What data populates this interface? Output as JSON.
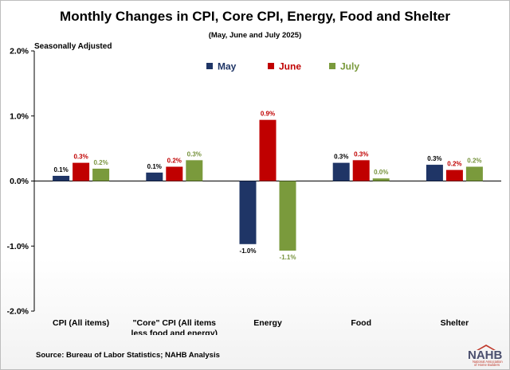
{
  "chart_data": {
    "type": "bar",
    "title": "Monthly Changes in CPI, Core CPI, Energy, Food and Shelter",
    "subtitle": "(May, June and July 2025)",
    "note": "Seasonally Adjusted",
    "source": "Source: Bureau of Labor Statistics; NAHB Analysis",
    "categories": [
      [
        "CPI (All items)"
      ],
      [
        "\"Core\" CPI (All items",
        "less food and energy)"
      ],
      [
        "Energy"
      ],
      [
        "Food"
      ],
      [
        "Shelter"
      ]
    ],
    "series": [
      {
        "name": "May",
        "color": "#1f3566",
        "label_color": "#000000",
        "values": [
          0.08,
          0.13,
          -0.97,
          0.28,
          0.25
        ],
        "labels": [
          "0.1%",
          "0.1%",
          "-1.0%",
          "0.3%",
          "0.3%"
        ]
      },
      {
        "name": "June",
        "color": "#c00000",
        "label_color": "#c00000",
        "values": [
          0.28,
          0.22,
          0.94,
          0.32,
          0.17
        ],
        "labels": [
          "0.3%",
          "0.2%",
          "0.9%",
          "0.3%",
          "0.2%"
        ]
      },
      {
        "name": "July",
        "color": "#7a9a3c",
        "label_color": "#76923c",
        "values": [
          0.19,
          0.32,
          -1.07,
          0.04,
          0.22
        ],
        "labels": [
          "0.2%",
          "0.3%",
          "-1.1%",
          "0.0%",
          "0.2%"
        ]
      }
    ],
    "yticks": [
      2.0,
      1.0,
      0.0,
      -1.0,
      -2.0
    ],
    "ytick_labels": [
      "2.0%",
      "1.0%",
      "0.0%",
      "-1.0%",
      "-2.0%"
    ],
    "ylim": [
      -2.0,
      2.0
    ],
    "legend_position": "top-center",
    "grid": false
  },
  "logo": {
    "name": "NAHB",
    "subtitle_line1": "National Association",
    "subtitle_line2": "of Home Builders"
  }
}
